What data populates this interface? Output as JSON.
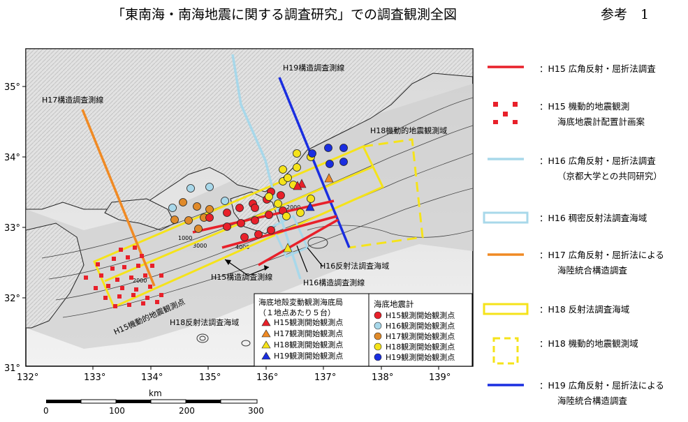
{
  "page": {
    "title": "「東南海・南海地震に関する調査研究」での調査観測全図",
    "reference": "参考　1"
  },
  "map": {
    "lat_labels": [
      "35°",
      "34°",
      "33°",
      "32°",
      "31°"
    ],
    "lon_labels": [
      "132°",
      "133°",
      "134°",
      "135°",
      "136°",
      "137°",
      "138°",
      "139°"
    ],
    "contour_labels": [
      "1000",
      "2000",
      "3000",
      "4000",
      "2000"
    ],
    "scale": {
      "unit": "km",
      "ticks": [
        "0",
        "100",
        "200",
        "300"
      ]
    },
    "annotations": {
      "h17_line": "H17構造調査測線",
      "h19_line": "H19構造調査測線",
      "h18_area": "H18機動的地震観測域",
      "h16_area": "H16反射法調査海域",
      "h15_line": "H15構造調査測線",
      "h16_line": "H16構造調査測線",
      "h15_area": "H15機動的地震観測点",
      "h18_reflection": "H18反射法調査海域"
    },
    "box_coast_guard": {
      "title": "海底地殻変動観測海底局",
      "subtitle": "（１地点あたり５台）",
      "items": [
        {
          "label": "H15観測開始観測点",
          "color": "#e8202a"
        },
        {
          "label": "H17観測開始観測点",
          "color": "#f08a24"
        },
        {
          "label": "H18観測開始観測点",
          "color": "#f5e31a"
        },
        {
          "label": "H19観測開始観測点",
          "color": "#1a2ee0"
        }
      ]
    },
    "box_seismometer": {
      "title": "海底地震計",
      "items": [
        {
          "label": "H15観測開始観測点",
          "color": "#e8202a"
        },
        {
          "label": "H16観測開始観測点",
          "color": "#a8d8ea"
        },
        {
          "label": "H17観測開始観測点",
          "color": "#e08a2a"
        },
        {
          "label": "H18観測開始観測点",
          "color": "#f5e31a"
        },
        {
          "label": "H19観測開始観測点",
          "color": "#1a2ee0"
        }
      ]
    }
  },
  "legend": [
    {
      "id": "h15",
      "line1": "：H15 広角反射・屈折法調査",
      "line2": "",
      "color": "#e8202a"
    },
    {
      "id": "h15obs",
      "line1": "：H15 機動的地震観測",
      "line2": "海底地震計配置計画案",
      "color": "#e8202a"
    },
    {
      "id": "h16",
      "line1": "：H16 広角反射・屈折法調査",
      "line2": "（京都大学との共同研究）",
      "color": "#a8d8ea"
    },
    {
      "id": "h16box",
      "line1": "：H16 稠密反射法調査海域",
      "line2": "",
      "color": "#a8d8ea"
    },
    {
      "id": "h17",
      "line1": "：H17 広角反射・屈折法による",
      "line2": "海陸統合構造調査",
      "color": "#f08a24"
    },
    {
      "id": "h18box",
      "line1": "：H18 反射法調査海域",
      "line2": "",
      "color": "#f5e31a"
    },
    {
      "id": "h18dash",
      "line1": "：H18 機動的地震観測域",
      "line2": "",
      "color": "#f5e31a"
    },
    {
      "id": "h19",
      "line1": "：H19 広角反射・屈折法による",
      "line2": "海陸統合構造調査",
      "color": "#1a2ee0"
    }
  ]
}
